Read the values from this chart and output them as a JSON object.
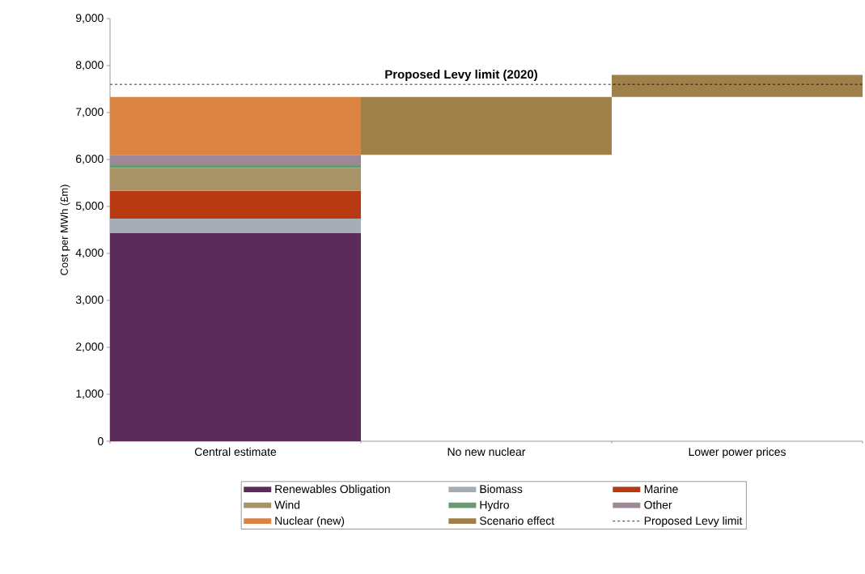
{
  "chart_data": {
    "type": "bar",
    "stacked": true,
    "ylabel": "Cost per MWh (£m)",
    "categories": [
      "Central estimate",
      "No new nuclear",
      "Lower power prices"
    ],
    "series": [
      {
        "name": "Renewables Obligation",
        "color": "#5b2c5a",
        "values": [
          4430,
          null,
          null
        ]
      },
      {
        "name": "Biomass",
        "color": "#a7adb6",
        "values": [
          310,
          null,
          null
        ]
      },
      {
        "name": "Marine",
        "color": "#b83a12",
        "values": [
          590,
          null,
          null
        ]
      },
      {
        "name": "Wind",
        "color": "#a89366",
        "values": [
          490,
          null,
          null
        ]
      },
      {
        "name": "Hydro",
        "color": "#6a9a72",
        "values": [
          60,
          null,
          null
        ]
      },
      {
        "name": "Other",
        "color": "#9d8899",
        "values": [
          220,
          null,
          null
        ]
      },
      {
        "name": "Nuclear (new)",
        "color": "#db8340",
        "values": [
          1230,
          null,
          null
        ]
      },
      {
        "name": "Scenario effect",
        "color": "#9e8048",
        "values": [
          null,
          1230,
          470
        ],
        "base": [
          null,
          6100,
          7330
        ]
      }
    ],
    "ylim": [
      0,
      9000
    ],
    "yticks": [
      0,
      {
        "value": 1000,
        "label": "1,000"
      },
      {
        "value": 2000,
        "label": "2,000"
      },
      {
        "value": 3000,
        "label": "3,000"
      },
      {
        "value": 4000,
        "label": "4,000"
      },
      {
        "value": 5000,
        "label": "5,000"
      },
      {
        "value": 6000,
        "label": "6,000"
      },
      {
        "value": 7000,
        "label": "7,000"
      },
      {
        "value": 8000,
        "label": "8,000"
      },
      {
        "value": 9000,
        "label": "9,000"
      }
    ],
    "ref_lines": [
      {
        "axis": "y",
        "value": 7600,
        "label": "Proposed Levy limit",
        "color": "#000000",
        "line_style": "dashed"
      }
    ],
    "annotations": [
      "Proposed Levy limit (2020)"
    ],
    "legend": "bottom"
  }
}
